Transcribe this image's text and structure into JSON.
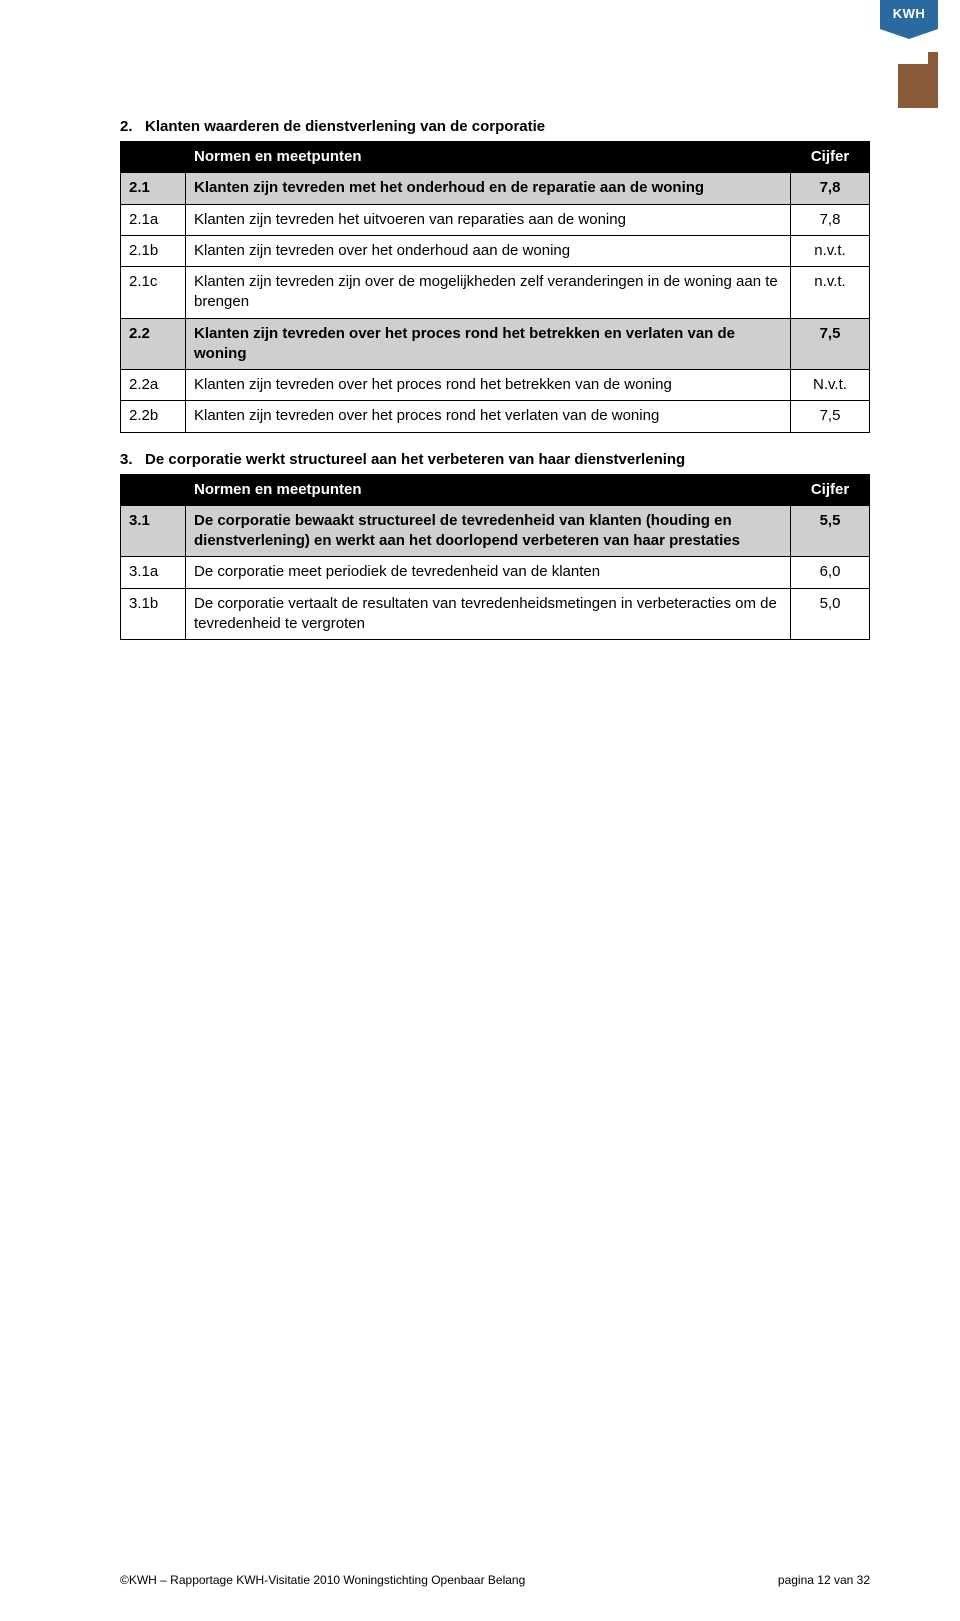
{
  "logo_text": "KWH",
  "section2": {
    "number": "2.",
    "title": "Klanten waarderen de dienstverlening van de corporatie",
    "header_label": "Normen en meetpunten",
    "header_score": "Cijfer",
    "rows": [
      {
        "code": "2.1",
        "text": "Klanten zijn tevreden met het onderhoud en de reparatie aan de woning",
        "score": "7,8",
        "emph": true
      },
      {
        "code": "2.1a",
        "text": "Klanten zijn tevreden het uitvoeren van reparaties aan de woning",
        "score": "7,8",
        "emph": false
      },
      {
        "code": "2.1b",
        "text": "Klanten zijn tevreden over het onderhoud aan de woning",
        "score": "n.v.t.",
        "emph": false
      },
      {
        "code": "2.1c",
        "text": "Klanten zijn tevreden zijn over de mogelijkheden zelf veranderingen in de woning aan te brengen",
        "score": "n.v.t.",
        "emph": false
      },
      {
        "code": "2.2",
        "text": "Klanten zijn tevreden over het proces rond het betrekken en verlaten van de woning",
        "score": "7,5",
        "emph": true
      },
      {
        "code": "2.2a",
        "text": "Klanten zijn tevreden over het proces rond het betrekken van de woning",
        "score": "N.v.t.",
        "emph": false
      },
      {
        "code": "2.2b",
        "text": "Klanten zijn tevreden over het proces rond het verlaten van de woning",
        "score": "7,5",
        "emph": false
      }
    ]
  },
  "section3": {
    "number": "3.",
    "title": "De corporatie werkt structureel aan het verbeteren van haar dienstverlening",
    "header_label": "Normen en meetpunten",
    "header_score": "Cijfer",
    "rows": [
      {
        "code": "3.1",
        "text": "De corporatie bewaakt structureel de tevredenheid van klanten (houding en dienstverlening) en werkt aan het doorlopend verbeteren van haar prestaties",
        "score": "5,5",
        "emph": true
      },
      {
        "code": "3.1a",
        "text": "De corporatie meet periodiek de tevredenheid van de klanten",
        "score": "6,0",
        "emph": false
      },
      {
        "code": "3.1b",
        "text": "De corporatie vertaalt de resultaten van tevredenheidsmetingen in verbeteracties om de tevredenheid te vergroten",
        "score": "5,0",
        "emph": false
      }
    ]
  },
  "footer_left": "©KWH – Rapportage KWH-Visitatie 2010 Woningstichting Openbaar Belang",
  "footer_right": "pagina 12 van 32"
}
